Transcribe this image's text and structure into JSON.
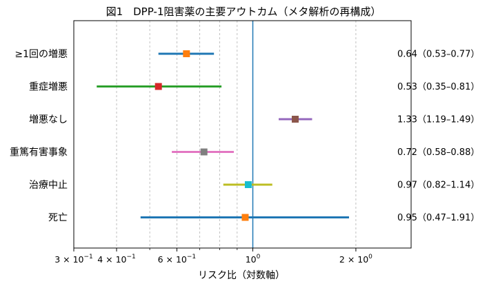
{
  "chart_data": {
    "type": "forest",
    "title": "図1　DPP-1阻害薬の主要アウトカム（メタ解析の再構成）",
    "xlabel": "リスク比（対数軸）",
    "xscale": "log",
    "xlim": [
      0.3,
      2.9
    ],
    "reference_line": 1.0,
    "grid": "vertical-dashed",
    "ticks": [
      {
        "value": 0.3,
        "base": "3 × 10",
        "exp": "−1"
      },
      {
        "value": 0.4,
        "base": "4 × 10",
        "exp": "−1"
      },
      {
        "value": 0.6,
        "base": "6 × 10",
        "exp": "−1"
      },
      {
        "value": 1.0,
        "base": "10",
        "exp": "0"
      },
      {
        "value": 2.0,
        "base": "2 × 10",
        "exp": "0"
      }
    ],
    "minor_ticks": [
      0.5,
      0.7,
      0.8,
      0.9
    ],
    "rows": [
      {
        "label": "≥1回の増悪",
        "rr": 0.64,
        "lo": 0.53,
        "hi": 0.77,
        "ci_text": "0.64（0.53–0.77）",
        "marker_color": "#ff7f0e",
        "line_color": "#1f77b4"
      },
      {
        "label": "重症増悪",
        "rr": 0.53,
        "lo": 0.35,
        "hi": 0.81,
        "ci_text": "0.53（0.35–0.81）",
        "marker_color": "#d62728",
        "line_color": "#2ca02c"
      },
      {
        "label": "増悪なし",
        "rr": 1.33,
        "lo": 1.19,
        "hi": 1.49,
        "ci_text": "1.33（1.19–1.49）",
        "marker_color": "#8c564b",
        "line_color": "#9467bd"
      },
      {
        "label": "重篤有害事象",
        "rr": 0.72,
        "lo": 0.58,
        "hi": 0.88,
        "ci_text": "0.72（0.58–0.88）",
        "marker_color": "#7f7f7f",
        "line_color": "#e377c2"
      },
      {
        "label": "治療中止",
        "rr": 0.97,
        "lo": 0.82,
        "hi": 1.14,
        "ci_text": "0.97（0.82–1.14）",
        "marker_color": "#17becf",
        "line_color": "#bcbd22"
      },
      {
        "label": "死亡",
        "rr": 0.95,
        "lo": 0.47,
        "hi": 1.91,
        "ci_text": "0.95（0.47–1.91）",
        "marker_color": "#ff7f0e",
        "line_color": "#1f77b4"
      }
    ],
    "colors": {
      "reference_line": "#1f77b4",
      "grid": "#b0b0b0",
      "axis": "#000000"
    }
  }
}
